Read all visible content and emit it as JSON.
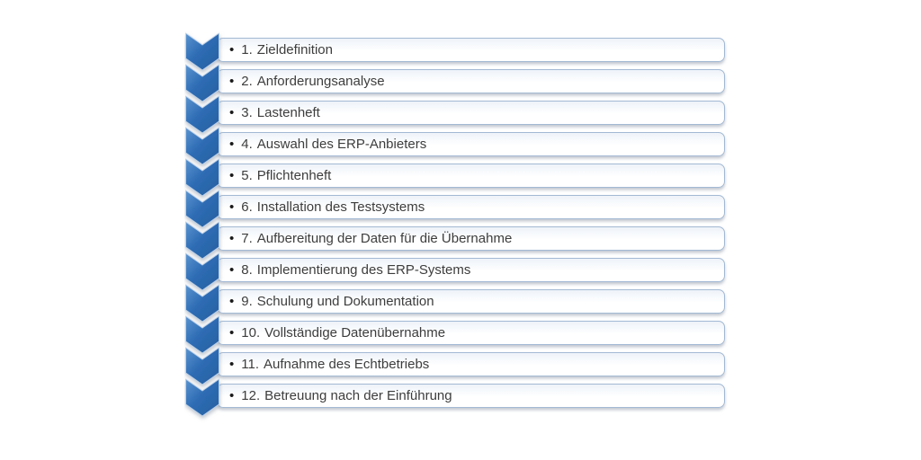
{
  "diagram": {
    "type": "vertical-chevron-list",
    "bullet": "•",
    "items": [
      {
        "number": "1.",
        "label": "Zieldefinition"
      },
      {
        "number": "2.",
        "label": "Anforderungsanalyse"
      },
      {
        "number": "3.",
        "label": "Lastenheft"
      },
      {
        "number": "4.",
        "label": "Auswahl des ERP-Anbieters"
      },
      {
        "number": "5.",
        "label": "Pflichtenheft"
      },
      {
        "number": "6.",
        "label": "Installation des Testsystems"
      },
      {
        "number": "7.",
        "label": "Aufbereitung der Daten für die Übernahme"
      },
      {
        "number": "8.",
        "label": "Implementierung des ERP-Systems"
      },
      {
        "number": "9.",
        "label": "Schulung und Dokumentation"
      },
      {
        "number": "10.",
        "label": "Vollständige Datenübernahme"
      },
      {
        "number": "11.",
        "label": "Aufnahme des Echtbetriebs"
      },
      {
        "number": "12.",
        "label": "Betreuung nach der Einführung"
      }
    ],
    "colors": {
      "chevron_blue": "#2e6cb4",
      "chevron_blue_dark": "#265f9f",
      "chevron_blue_light": "#5b94d0",
      "chevron_highlight": "#bcd1e9",
      "box_border": "#a3b9d4",
      "box_fill_top": "#eef3f9",
      "box_fill": "#ffffff",
      "text": "#3d3d3d",
      "background": "#ffffff"
    }
  }
}
